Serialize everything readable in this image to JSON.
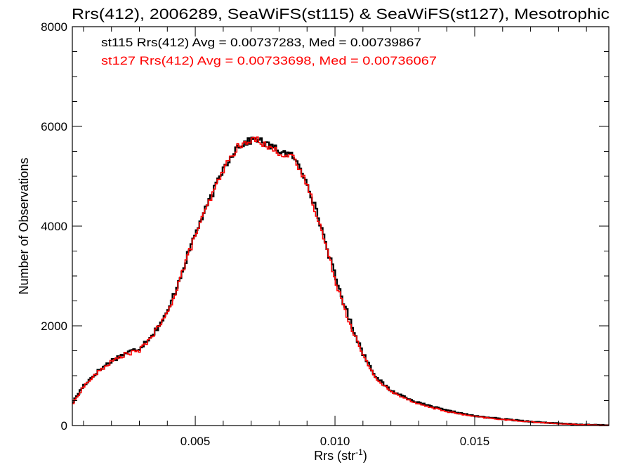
{
  "chart_data": {
    "type": "line",
    "title": "Rrs(412), 2006289, SeaWiFS(st115) & SeaWiFS(st127), Mesotrophic",
    "xlabel_base": "Rrs (str",
    "xlabel_exp": "-1",
    "xlabel_close": ")",
    "ylabel": "Number of Observations",
    "xlim": [
      0.0006,
      0.0198
    ],
    "ylim": [
      0,
      8000
    ],
    "x_ticks": [
      0.005,
      0.01,
      0.015
    ],
    "x_tick_labels": [
      "0.005",
      "0.010",
      "0.015"
    ],
    "y_ticks": [
      0,
      2000,
      4000,
      6000,
      8000
    ],
    "y_tick_labels": [
      "0",
      "2000",
      "4000",
      "6000",
      "8000"
    ],
    "grid": false,
    "series": [
      {
        "color": "#000000",
        "stat_label": "st115 Rrs(412) Avg = 0.00737283, Med = 0.00739867",
        "x": [
          0.0006,
          0.001,
          0.0015,
          0.002,
          0.0025,
          0.003,
          0.0035,
          0.004,
          0.0045,
          0.005,
          0.0055,
          0.006,
          0.0065,
          0.007,
          0.0072,
          0.0075,
          0.008,
          0.0085,
          0.009,
          0.0095,
          0.01,
          0.0105,
          0.011,
          0.0115,
          0.012,
          0.013,
          0.014,
          0.015,
          0.016,
          0.017,
          0.018,
          0.019,
          0.0198
        ],
        "y": [
          450,
          800,
          1080,
          1300,
          1450,
          1550,
          1850,
          2250,
          3050,
          3850,
          4500,
          5150,
          5600,
          5720,
          5760,
          5650,
          5520,
          5400,
          4900,
          4000,
          3000,
          2150,
          1450,
          950,
          700,
          450,
          300,
          190,
          130,
          80,
          40,
          15,
          5
        ]
      },
      {
        "color": "#ff0000",
        "stat_label": "st127 Rrs(412) Avg = 0.00733698, Med = 0.00736067",
        "x": [
          0.0006,
          0.001,
          0.0015,
          0.002,
          0.0025,
          0.003,
          0.0035,
          0.004,
          0.0045,
          0.005,
          0.0055,
          0.006,
          0.0065,
          0.007,
          0.0072,
          0.0075,
          0.008,
          0.0085,
          0.009,
          0.0095,
          0.01,
          0.0105,
          0.011,
          0.0115,
          0.012,
          0.013,
          0.014,
          0.015,
          0.016,
          0.017,
          0.018,
          0.019,
          0.0198
        ],
        "y": [
          420,
          780,
          1060,
          1280,
          1430,
          1500,
          1830,
          2230,
          3020,
          3820,
          4480,
          5130,
          5580,
          5700,
          5780,
          5620,
          5480,
          5360,
          4850,
          3950,
          2950,
          2100,
          1400,
          920,
          680,
          430,
          280,
          180,
          120,
          75,
          35,
          12,
          4
        ]
      }
    ]
  }
}
